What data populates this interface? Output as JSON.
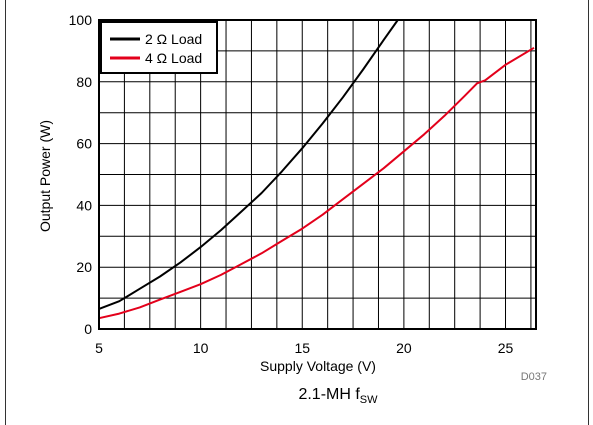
{
  "chart_data": {
    "type": "line",
    "ylabel": "Output Power (W)",
    "xlabel": "Supply Voltage (V)",
    "caption_main": "2.1-MH f",
    "caption_sub": "SW",
    "figure_id": "D037",
    "xlim": [
      5,
      26.5
    ],
    "ylim": [
      0,
      100
    ],
    "x_ticks": [
      5,
      10,
      15,
      20,
      25
    ],
    "y_ticks": [
      0,
      20,
      40,
      60,
      80,
      100
    ],
    "grid": true,
    "legend_position": "top-left",
    "series": [
      {
        "name": "2 Ω Load",
        "color": "#000000",
        "points": [
          [
            5,
            6.5
          ],
          [
            6,
            9
          ],
          [
            7,
            13
          ],
          [
            8,
            17
          ],
          [
            9,
            21.5
          ],
          [
            10,
            26.5
          ],
          [
            11,
            32
          ],
          [
            12,
            38
          ],
          [
            13,
            44
          ],
          [
            14,
            51
          ],
          [
            15,
            58.5
          ],
          [
            16,
            66.5
          ],
          [
            17,
            75
          ],
          [
            18,
            84
          ],
          [
            19,
            93.5
          ],
          [
            19.7,
            100
          ]
        ]
      },
      {
        "name": "4 Ω Load",
        "color": "#e3001b",
        "points": [
          [
            5,
            3.5
          ],
          [
            6,
            5
          ],
          [
            7,
            7
          ],
          [
            8,
            9.5
          ],
          [
            9,
            12
          ],
          [
            10,
            14.5
          ],
          [
            11,
            17.5
          ],
          [
            12,
            21
          ],
          [
            13,
            24.5
          ],
          [
            14,
            28.5
          ],
          [
            15,
            32.5
          ],
          [
            16,
            37
          ],
          [
            17,
            42
          ],
          [
            18,
            47
          ],
          [
            19,
            52
          ],
          [
            20,
            57.5
          ],
          [
            21,
            63
          ],
          [
            22,
            69
          ],
          [
            23,
            75.5
          ],
          [
            23.6,
            79.5
          ],
          [
            24,
            80.5
          ],
          [
            25,
            85.5
          ],
          [
            26.4,
            91
          ]
        ]
      }
    ]
  }
}
